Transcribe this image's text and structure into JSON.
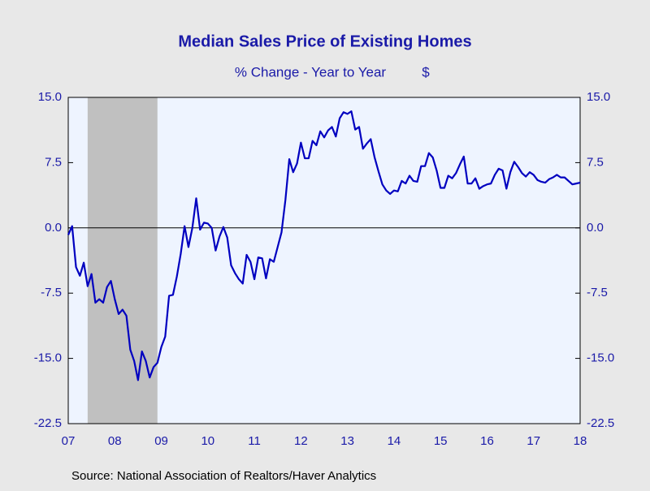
{
  "chart_data": {
    "type": "line",
    "title": "Median Sales Price of Existing Homes",
    "subtitle": "% Change - Year to Year",
    "unit": "$",
    "source": "Source:  National Association of Realtors/Haver Analytics",
    "categories": [
      "07",
      null,
      null,
      null,
      null,
      null,
      null,
      null,
      null,
      null,
      null,
      null,
      "08",
      null,
      null,
      null,
      null,
      null,
      null,
      null,
      null,
      null,
      null,
      null,
      "09",
      null,
      null,
      null,
      null,
      null,
      null,
      null,
      null,
      null,
      null,
      null,
      "10",
      null,
      null,
      null,
      null,
      null,
      null,
      null,
      null,
      null,
      null,
      null,
      "11",
      null,
      null,
      null,
      null,
      null,
      null,
      null,
      null,
      null,
      null,
      null,
      "12",
      null,
      null,
      null,
      null,
      null,
      null,
      null,
      null,
      null,
      null,
      null,
      "13",
      null,
      null,
      null,
      null,
      null,
      null,
      null,
      null,
      null,
      null,
      null,
      "14",
      null,
      null,
      null,
      null,
      null,
      null,
      null,
      null,
      null,
      null,
      null,
      "15",
      null,
      null,
      null,
      null,
      null,
      null,
      null,
      null,
      null,
      null,
      null,
      "16",
      null,
      null,
      null,
      null,
      null,
      null,
      null,
      null,
      null,
      null,
      null,
      "17",
      null,
      null,
      null,
      null,
      null,
      null,
      null,
      null,
      null,
      null,
      null,
      "18"
    ],
    "series": [
      {
        "color": "#0000c0",
        "values": [
          -0.8,
          0.2,
          -4.5,
          -5.5,
          -4,
          -6.7,
          -5.3,
          -8.6,
          -8.2,
          -8.6,
          -6.8,
          -6.1,
          -8.2,
          -9.9,
          -9.4,
          -10.1,
          -14,
          -15.3,
          -17.5,
          -14.2,
          -15.3,
          -17.2,
          -16,
          -15.5,
          -13.7,
          -12.5,
          -7.8,
          -7.7,
          -5.6,
          -3,
          0.2,
          -2.2,
          0,
          3.4,
          -0.2,
          0.6,
          0.5,
          0,
          -2.6,
          -1,
          0.1,
          -1.1,
          -4.3,
          -5.2,
          -5.9,
          -6.4,
          -3.1,
          -3.9,
          -5.9,
          -3.4,
          -3.5,
          -5.8,
          -3.6,
          -3.9,
          -2.2,
          -0.5,
          3.2,
          7.9,
          6.4,
          7.4,
          9.8,
          8,
          8,
          10,
          9.5,
          11.1,
          10.4,
          11.2,
          11.6,
          10.5,
          12.6,
          13.3,
          13.1,
          13.4,
          11.3,
          11.6,
          9.1,
          9.7,
          10.2,
          8.1,
          6.5,
          5,
          4.3,
          3.9,
          4.3,
          4.2,
          5.4,
          5.1,
          6,
          5.4,
          5.3,
          7.1,
          7.1,
          8.6,
          8.1,
          6.6,
          4.6,
          4.6,
          6,
          5.7,
          6.3,
          7.3,
          8.2,
          5.1,
          5.1,
          5.7,
          4.5,
          4.8,
          5,
          5.1,
          6.1,
          6.8,
          6.6,
          4.5,
          6.4,
          7.6,
          7,
          6.3,
          5.9,
          6.4,
          6.1,
          5.5,
          5.3,
          5.2,
          5.6,
          5.8,
          6.1,
          5.8,
          5.8,
          5.4,
          5,
          5.1,
          5.2
        ]
      }
    ],
    "ylim": [
      -22.5,
      15
    ],
    "yticks": [
      {
        "value": -22.5,
        "label": "-22.5"
      },
      {
        "value": -15,
        "label": "-15.0"
      },
      -7.5,
      {
        "value": 0,
        "label": "0.0"
      },
      7.5,
      {
        "value": 15,
        "label": "15.0"
      }
    ],
    "zero_line": true,
    "shaded": [
      {
        "from": 5,
        "to": 23,
        "color": "#c0c0c0"
      }
    ],
    "plot_color": "#eef4ff"
  }
}
